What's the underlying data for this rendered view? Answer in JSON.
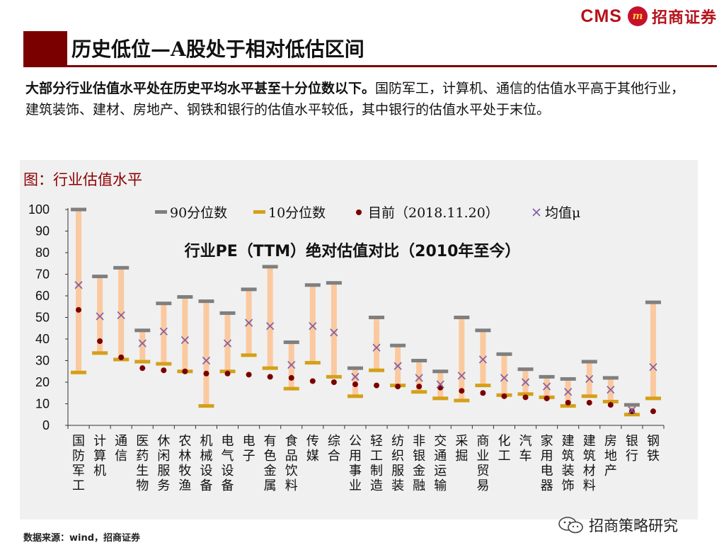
{
  "header": {
    "logo_cms": "CMS",
    "logo_mark": "m",
    "logo_cn": "招商证券",
    "title": "历史低位—A股处于相对低估区间"
  },
  "description": {
    "bold": "大部分行业估值水平处在历史平均水平甚至十分位数以下。",
    "normal": "国防军工，计算机、通信的估值水平高于其他行业，建筑装饰、建材、房地产、钢铁和银行的估值水平较低，其中银行的估值水平处于末位。"
  },
  "chart_heading": "图：行业估值水平",
  "source": "数据来源：wind，招商证券",
  "watermark": "招商策略研究",
  "colors": {
    "range_bar": "#fbc9a0",
    "p90_marker": "#7f7f7f",
    "p10_marker": "#d4a017",
    "current_dot": "#7a0000",
    "mean_marker": "#7b5ea7",
    "brand": "#b5121b"
  },
  "chart_data": {
    "type": "range",
    "title": "行业PE（TTM）绝对估值对比（2010年至今）",
    "ylim": [
      0,
      100
    ],
    "yticks": [
      0,
      10,
      20,
      30,
      40,
      50,
      60,
      70,
      80,
      90,
      100
    ],
    "legend_position": "top",
    "legend": {
      "p90": "90分位数",
      "p10": "10分位数",
      "current": "目前（2018.11.20）",
      "mean": "均值μ"
    },
    "categories": [
      "国防军工",
      "计算机",
      "通信",
      "医药生物",
      "休闲服务",
      "农林牧渔",
      "机械设备",
      "电气设备",
      "电子",
      "有色金属",
      "食品饮料",
      "传媒",
      "综合",
      "公用事业",
      "轻工制造",
      "纺织服装",
      "非银金融",
      "交通运输",
      "采掘",
      "商业贸易",
      "化工",
      "汽车",
      "家用电器",
      "建筑装饰",
      "建筑材料",
      "房地产",
      "银行",
      "钢铁"
    ],
    "series": [
      {
        "name": "90分位数",
        "values": [
          100,
          69,
          73,
          44,
          56.5,
          59.5,
          57.5,
          52,
          63,
          73.5,
          38.5,
          65,
          66,
          26.5,
          50,
          37,
          30,
          25,
          50,
          44,
          33,
          26,
          22.5,
          21.5,
          29.5,
          22,
          9.5,
          57
        ]
      },
      {
        "name": "10分位数",
        "values": [
          24.5,
          33.5,
          30.5,
          29.5,
          28.5,
          25,
          9,
          25,
          32.5,
          26.5,
          17,
          29,
          22.5,
          13.5,
          25.5,
          18.5,
          15.5,
          12.5,
          11.5,
          18.5,
          14,
          14.5,
          13,
          9,
          13.5,
          11,
          5,
          12.5
        ]
      },
      {
        "name": "目前（2018.11.20）",
        "values": [
          53.5,
          39,
          31.5,
          26.5,
          25.5,
          25,
          24,
          24,
          23.5,
          22.5,
          22,
          20.5,
          20,
          19,
          18.5,
          18,
          18,
          17.5,
          16,
          15,
          13.5,
          13,
          12.5,
          10.5,
          10.5,
          9.5,
          6.5,
          6.5
        ]
      },
      {
        "name": "均值μ",
        "values": [
          65,
          50.5,
          51,
          38,
          43.5,
          39.5,
          30,
          38,
          47.5,
          46,
          28,
          46,
          43,
          22.5,
          36,
          27.5,
          22,
          19,
          23,
          30.5,
          22,
          20,
          18,
          15.5,
          21.5,
          16.5,
          7,
          27
        ]
      }
    ]
  }
}
